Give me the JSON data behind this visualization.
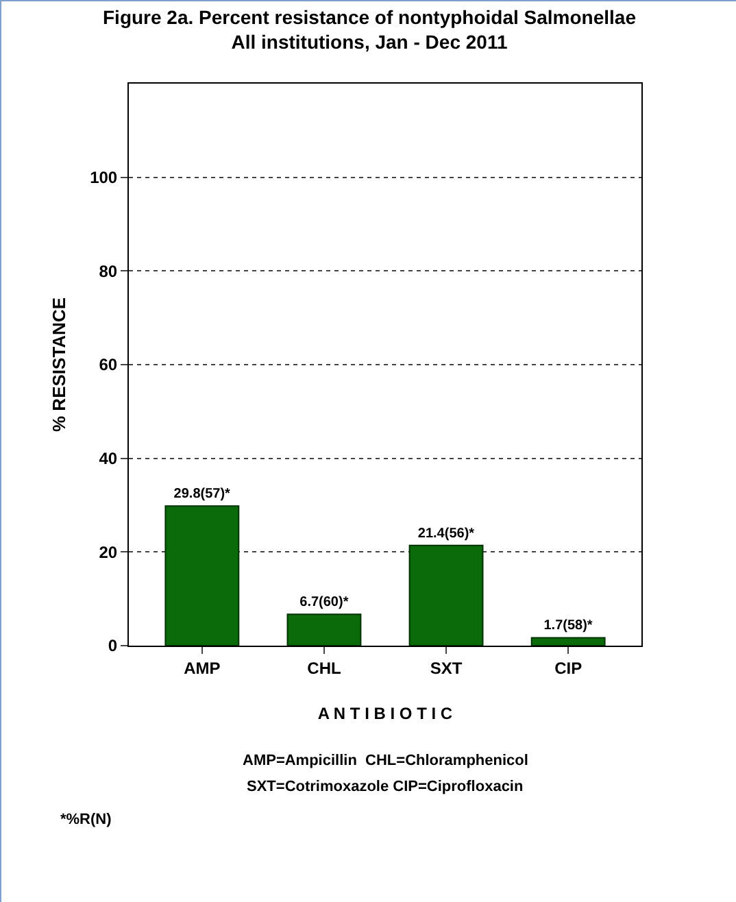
{
  "chart_data": {
    "type": "bar",
    "title": "Figure 2a. Percent resistance of nontyphoidal Salmonellae\nAll institutions, Jan - Dec 2011",
    "xlabel": "A N T I B I O T I C",
    "ylabel": "% RESISTANCE",
    "categories": [
      "AMP",
      "CHL",
      "SXT",
      "CIP"
    ],
    "values": [
      29.8,
      6.7,
      21.4,
      1.7
    ],
    "value_labels": [
      "29.8(57)*",
      "6.7(60)*",
      "21.4(56)*",
      "1.7(58)*"
    ],
    "color": "#0b6b0b",
    "ylim": [
      0,
      120
    ],
    "yticks": [
      0,
      20,
      40,
      60,
      80,
      100
    ],
    "grid": "y",
    "annotations": [
      "AMP=Ampicillin  CHL=Chloramphenicol",
      "SXT=Cotrimoxazole CIP=Ciprofloxacin",
      "*%R(N)"
    ]
  }
}
